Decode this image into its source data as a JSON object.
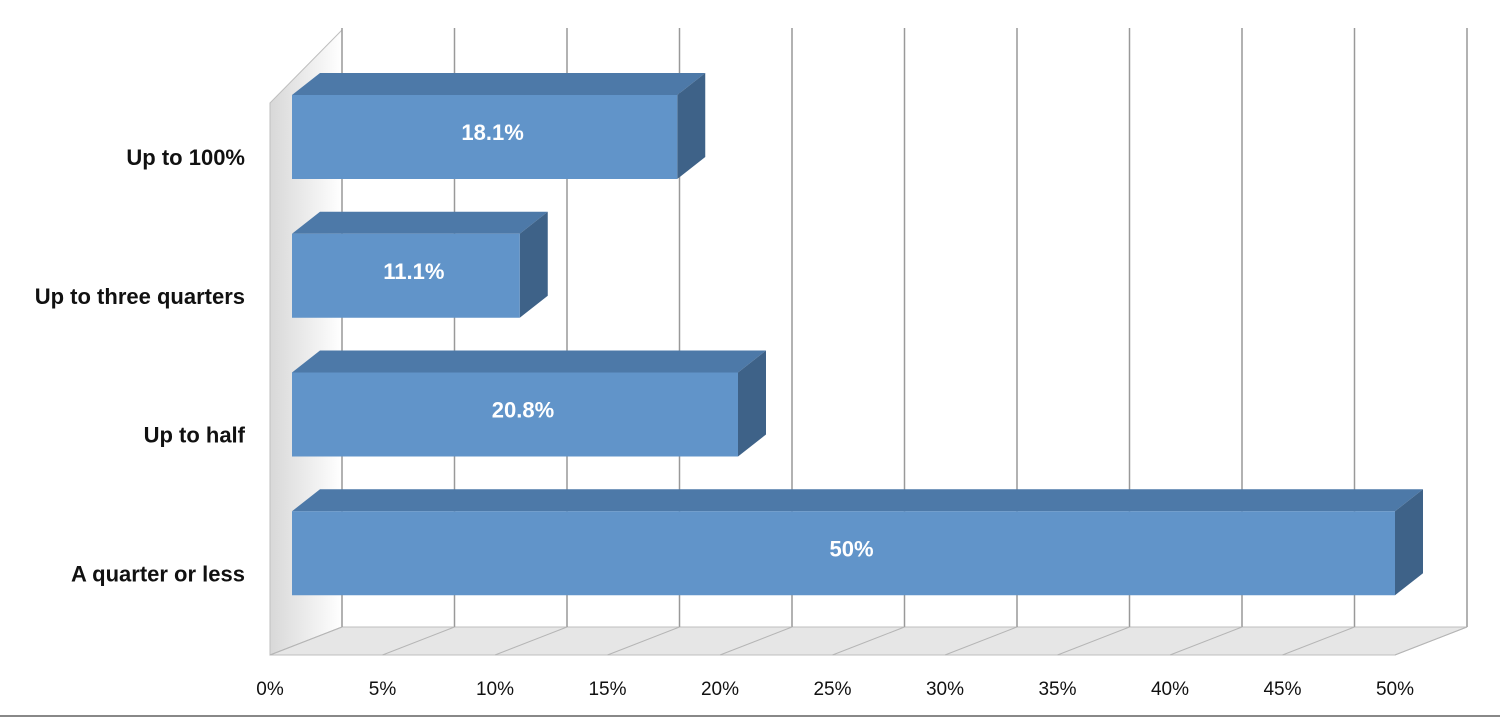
{
  "chart_data": {
    "type": "bar",
    "orientation": "horizontal",
    "style": "3d",
    "categories": [
      "Up to 100%",
      "Up to three quarters",
      "Up to half",
      "A quarter or less"
    ],
    "values": [
      18.1,
      11.1,
      20.8,
      50
    ],
    "data_labels": [
      "18.1%",
      "11.1%",
      "20.8%",
      "50%"
    ],
    "x_ticks": [
      "0%",
      "5%",
      "10%",
      "15%",
      "20%",
      "25%",
      "30%",
      "35%",
      "40%",
      "45%",
      "50%"
    ],
    "xlim": [
      0,
      50
    ],
    "title": "",
    "xlabel": "",
    "ylabel": "",
    "grid": true,
    "legend": "none",
    "colors": {
      "bar_front": "#6194c9",
      "bar_top": "#4d79a8",
      "bar_side": "#3e6288",
      "gridline": "#999999",
      "floor": "#e6e6e6"
    }
  }
}
